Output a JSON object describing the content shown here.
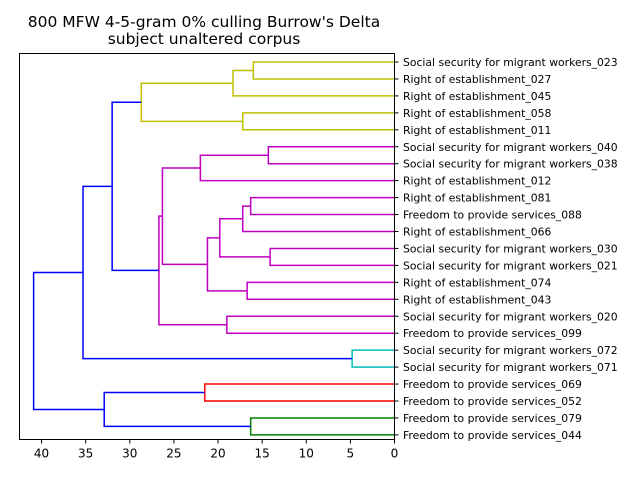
{
  "chart_data": {
    "type": "dendrogram",
    "title": "800 MFW 4-5-gram 0% culling Burrow's Delta",
    "subtitle": "subject unaltered corpus",
    "xlim": [
      42.5,
      0
    ],
    "x_ticks": [
      40,
      35,
      30,
      25,
      20,
      15,
      10,
      5,
      0
    ],
    "orientation": "right",
    "grid": false,
    "leaves": [
      "Social security for migrant workers_023",
      "Right of establishment_027",
      "Right of establishment_045",
      "Right of establishment_058",
      "Right of establishment_011",
      "Social security for migrant workers_040",
      "Social security for migrant workers_038",
      "Right of establishment_012",
      "Right of establishment_081",
      "Freedom to provide services_088",
      "Right of establishment_066",
      "Social security for migrant workers_030",
      "Social security for migrant workers_021",
      "Right of establishment_074",
      "Right of establishment_043",
      "Social security for migrant workers_020",
      "Freedom to provide services_099",
      "Social security for migrant workers_072",
      "Social security for migrant workers_071",
      "Freedom to provide services_069",
      "Freedom to provide services_052",
      "Freedom to provide services_079",
      "Freedom to provide services_044"
    ],
    "colors": {
      "yellow": "#bfbf00",
      "magenta": "#bf00bf",
      "cyan": "#00bfbf",
      "red": "#ff0000",
      "green": "#008000",
      "blue": "#0000ff"
    },
    "merges": [
      {
        "id": "m1",
        "a": "L0",
        "b": "L1",
        "height": 16.0,
        "color": "yellow"
      },
      {
        "id": "m2",
        "a": "m1",
        "b": "L2",
        "height": 18.3,
        "color": "yellow"
      },
      {
        "id": "m3",
        "a": "L3",
        "b": "L4",
        "height": 17.2,
        "color": "yellow"
      },
      {
        "id": "m4",
        "a": "m2",
        "b": "m3",
        "height": 28.7,
        "color": "yellow"
      },
      {
        "id": "m5",
        "a": "L5",
        "b": "L6",
        "height": 14.3,
        "color": "magenta"
      },
      {
        "id": "m6",
        "a": "m5",
        "b": "L7",
        "height": 22.0,
        "color": "magenta"
      },
      {
        "id": "m7",
        "a": "L8",
        "b": "L9",
        "height": 16.3,
        "color": "magenta"
      },
      {
        "id": "m8",
        "a": "m7",
        "b": "L10",
        "height": 17.2,
        "color": "magenta"
      },
      {
        "id": "m9",
        "a": "L11",
        "b": "L12",
        "height": 14.1,
        "color": "magenta"
      },
      {
        "id": "m10",
        "a": "m8",
        "b": "m9",
        "height": 19.8,
        "color": "magenta"
      },
      {
        "id": "m11",
        "a": "L13",
        "b": "L14",
        "height": 16.7,
        "color": "magenta"
      },
      {
        "id": "m12",
        "a": "m10",
        "b": "m11",
        "height": 21.2,
        "color": "magenta"
      },
      {
        "id": "m13",
        "a": "m6",
        "b": "m12",
        "height": 26.3,
        "color": "magenta"
      },
      {
        "id": "m14",
        "a": "L15",
        "b": "L16",
        "height": 19.0,
        "color": "magenta"
      },
      {
        "id": "m15",
        "a": "m13",
        "b": "m14",
        "height": 26.7,
        "color": "magenta"
      },
      {
        "id": "m16",
        "a": "m4",
        "b": "m15",
        "height": 32.0,
        "color": "blue"
      },
      {
        "id": "m17",
        "a": "L17",
        "b": "L18",
        "height": 4.8,
        "color": "cyan"
      },
      {
        "id": "m18",
        "a": "m16",
        "b": "m17",
        "height": 35.3,
        "color": "blue"
      },
      {
        "id": "m19",
        "a": "L19",
        "b": "L20",
        "height": 21.5,
        "color": "red"
      },
      {
        "id": "m20",
        "a": "L21",
        "b": "L22",
        "height": 16.3,
        "color": "green"
      },
      {
        "id": "m21",
        "a": "m19",
        "b": "m20",
        "height": 32.9,
        "color": "blue"
      },
      {
        "id": "m22",
        "a": "m18",
        "b": "m21",
        "height": 40.9,
        "color": "blue"
      }
    ]
  }
}
